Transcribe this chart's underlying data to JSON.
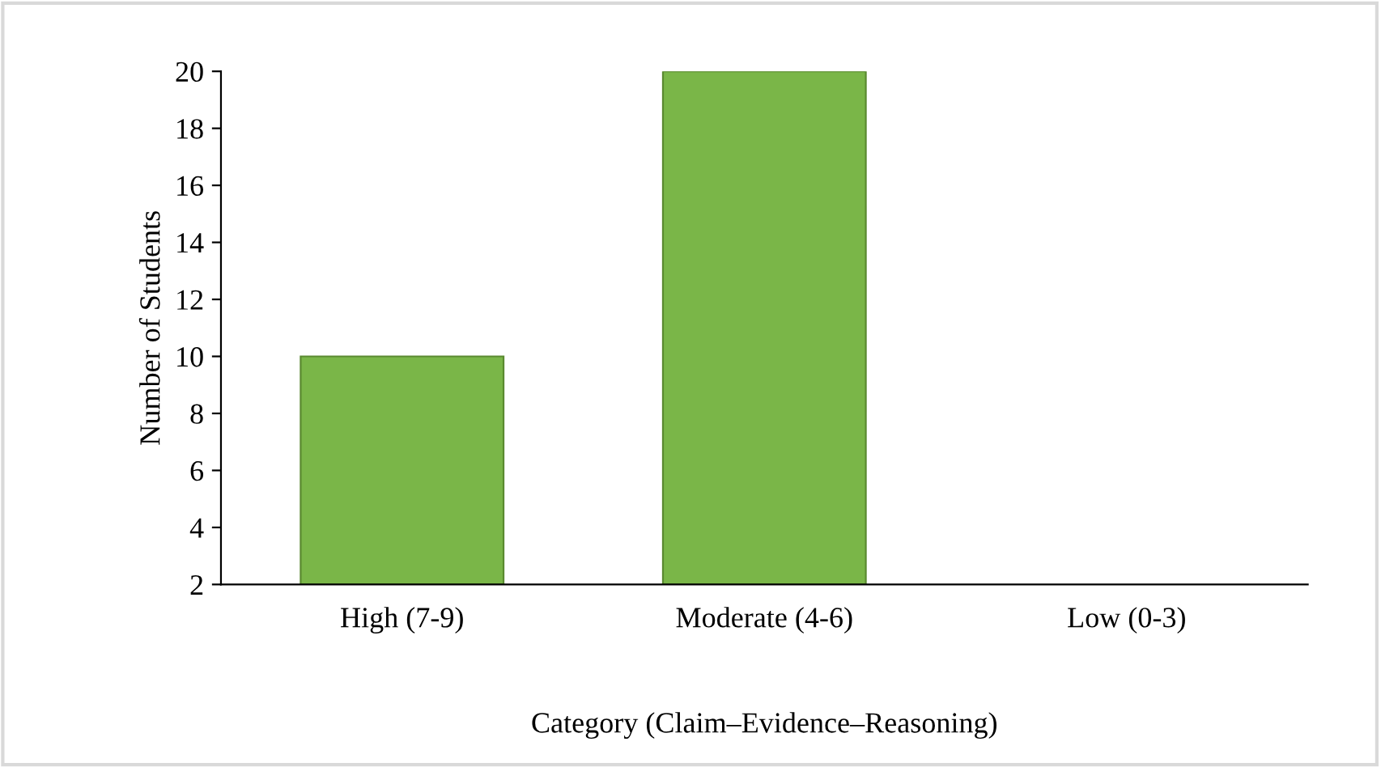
{
  "chart_data": {
    "type": "bar",
    "categories": [
      "High (7-9)",
      "Moderate (4-6)",
      "Low (0-3)"
    ],
    "values": [
      10,
      20,
      null
    ],
    "color": "#7ab648",
    "ylabel": "Number of Students",
    "xlabel": "Category (Claim–Evidence–Reasoning)",
    "ylim": [
      2,
      20
    ],
    "yticks": [
      2,
      4,
      6,
      8,
      10,
      12,
      14,
      16,
      18,
      20
    ],
    "grid": false,
    "legend": false
  }
}
